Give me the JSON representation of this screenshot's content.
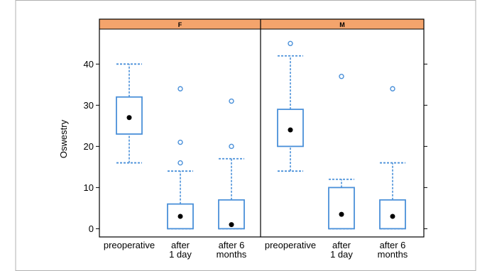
{
  "chart_data": {
    "type": "box",
    "ylabel": "Oswestry",
    "yticks": [
      0,
      10,
      20,
      30,
      40
    ],
    "ylim": [
      -2,
      48.5
    ],
    "categories": [
      "preoperative",
      "after\n1 day",
      "after 6\nmonths"
    ],
    "panels": [
      {
        "label": "F",
        "boxes": [
          {
            "category": "preoperative",
            "whisker_low": 16,
            "q1": 23,
            "median": 27,
            "q3": 32,
            "whisker_high": 40,
            "outliers": []
          },
          {
            "category": "after\n1 day",
            "whisker_low": 0,
            "q1": 0,
            "median": 3,
            "q3": 6,
            "whisker_high": 14,
            "outliers": [
              16,
              21,
              34
            ]
          },
          {
            "category": "after 6\nmonths",
            "whisker_low": 0,
            "q1": 0,
            "median": 1,
            "q3": 7,
            "whisker_high": 17,
            "outliers": [
              20,
              31
            ]
          }
        ]
      },
      {
        "label": "M",
        "boxes": [
          {
            "category": "preoperative",
            "whisker_low": 14,
            "q1": 20,
            "median": 24,
            "q3": 29,
            "whisker_high": 42,
            "outliers": [
              45
            ]
          },
          {
            "category": "after\n1 day",
            "whisker_low": 0,
            "q1": 0,
            "median": 3.5,
            "q3": 10,
            "whisker_high": 12,
            "outliers": [
              37
            ]
          },
          {
            "category": "after 6\nmonths",
            "whisker_low": 0,
            "q1": 0,
            "median": 3,
            "q3": 7,
            "whisker_high": 16,
            "outliers": [
              34
            ]
          }
        ]
      }
    ],
    "colors": {
      "strip": "#f4a46c",
      "box": "#4a90d9",
      "outlier": "#4a90d9",
      "median": "#000000",
      "frame": "#000000",
      "border": "#b0b0b0"
    }
  }
}
